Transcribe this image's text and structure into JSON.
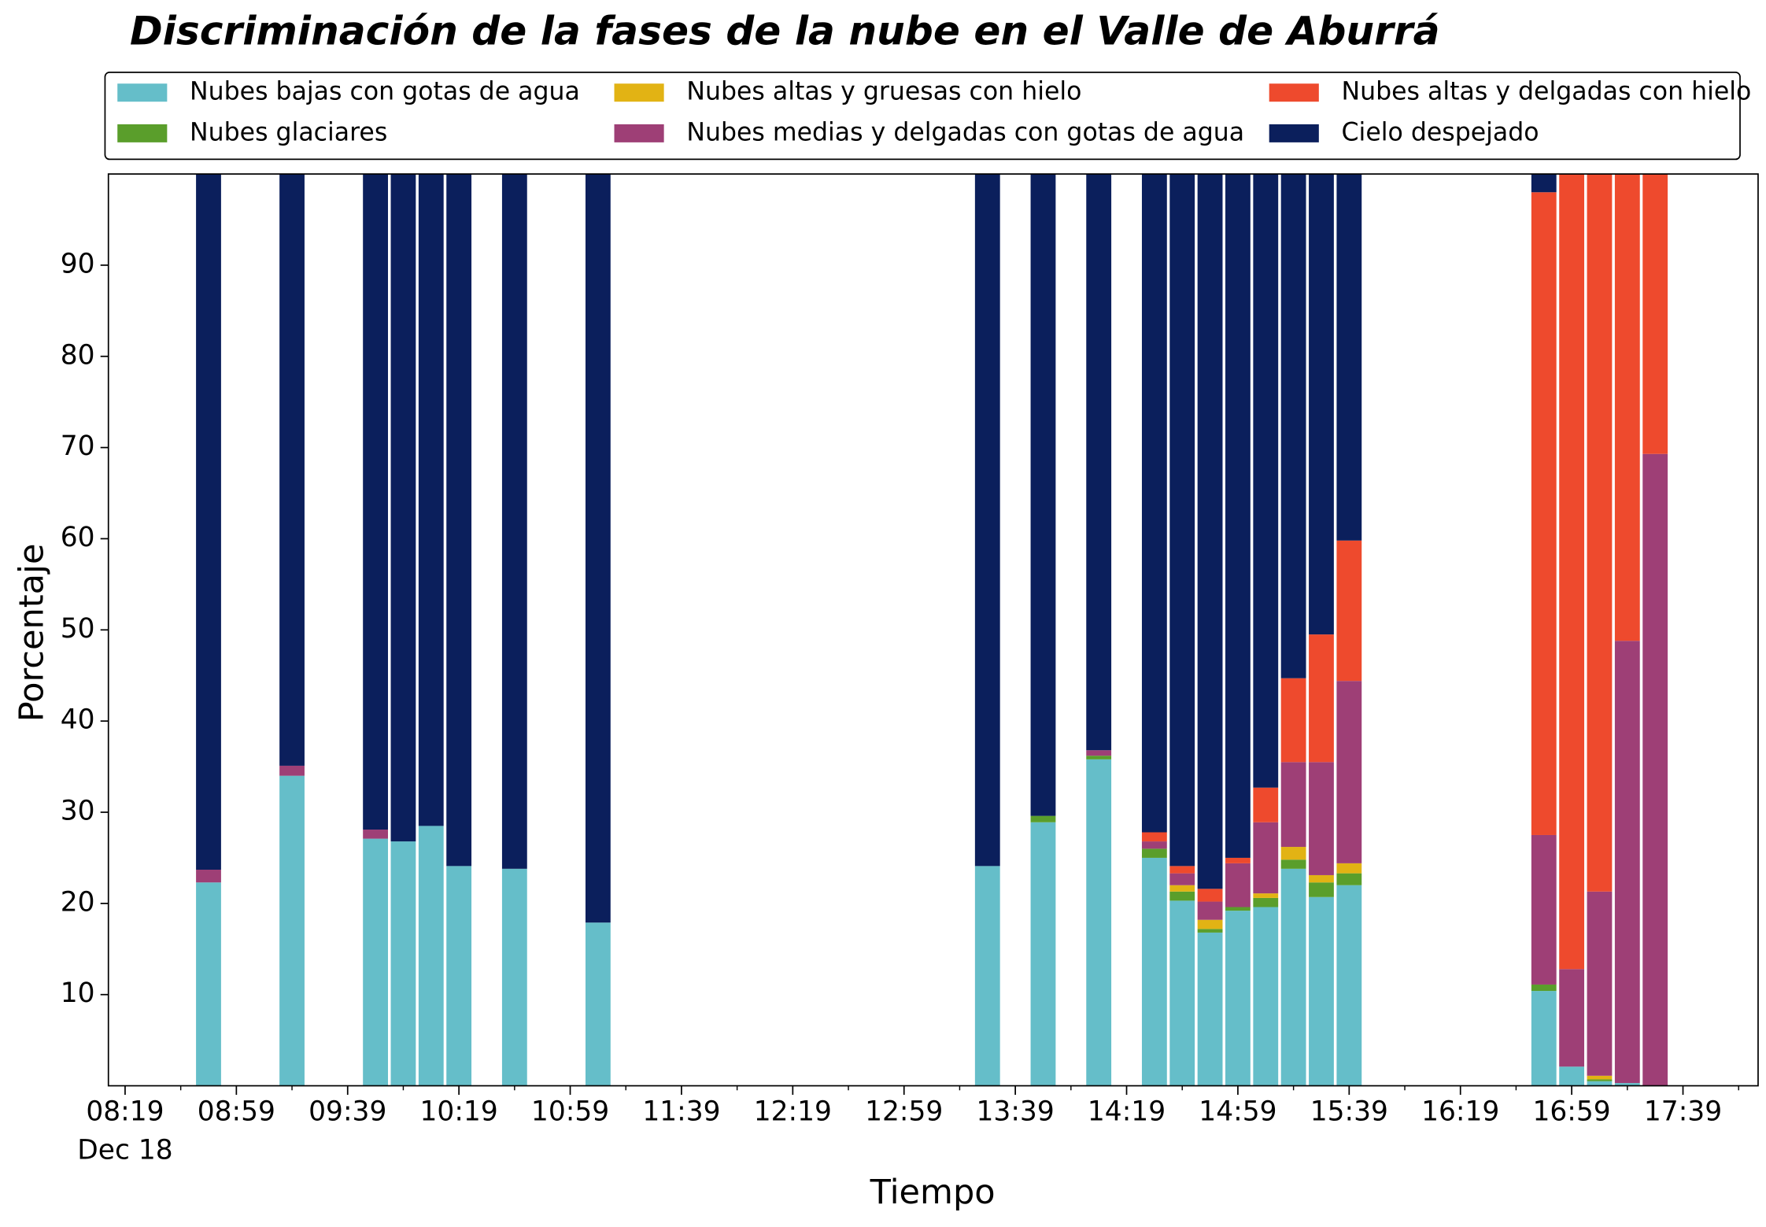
{
  "chart_data": {
    "type": "stacked_bar",
    "title": "Discriminación de la fases de la nube en el Valle de Aburrá",
    "x_label": "Tiempo",
    "y_label": "Porcentaje",
    "x_date_label": "Dec 18",
    "x": [
      "08:49",
      "09:19",
      "09:49",
      "09:59",
      "10:09",
      "10:19",
      "10:39",
      "11:09",
      "13:29",
      "13:49",
      "14:09",
      "14:29",
      "14:39",
      "14:49",
      "14:59",
      "15:09",
      "15:19",
      "15:29",
      "15:39",
      "16:49",
      "16:59",
      "17:09",
      "17:19",
      "17:29"
    ],
    "series": [
      {
        "name": "Nubes bajas con gotas de agua",
        "color": "#65bec9",
        "values": [
          22.3,
          34,
          27.1,
          26.8,
          28.5,
          24.1,
          23.8,
          17.9,
          24.1,
          28.9,
          35.8,
          25.0,
          20.3,
          16.8,
          19.2,
          19.6,
          23.8,
          20.7,
          22.0,
          10.4,
          2.1,
          0.5,
          0.3,
          0
        ]
      },
      {
        "name": "Nubes glaciares",
        "color": "#5a9e2b",
        "values": [
          0,
          0,
          0,
          0,
          0,
          0,
          0,
          0,
          0,
          0.7,
          0.4,
          1.0,
          1.0,
          0.4,
          0.4,
          1.0,
          1.0,
          1.6,
          1.3,
          0.7,
          0,
          0.2,
          0,
          0
        ]
      },
      {
        "name": "Nubes altas y gruesas con hielo",
        "color": "#e2b314",
        "values": [
          0,
          0,
          0,
          0,
          0,
          0,
          0,
          0,
          0,
          0,
          0,
          0,
          0.7,
          1.0,
          0,
          0.5,
          1.4,
          0.8,
          1.1,
          0,
          0,
          0.4,
          0,
          0
        ]
      },
      {
        "name": "Nubes medias y delgadas con gotas de agua",
        "color": "#9e3f76",
        "values": [
          1.4,
          1.1,
          1.0,
          0,
          0,
          0,
          0,
          0,
          0,
          0,
          0.6,
          0.8,
          1.3,
          2.0,
          4.8,
          7.8,
          9.3,
          12.4,
          20.0,
          16.4,
          10.7,
          20.2,
          48.5,
          69.3
        ]
      },
      {
        "name": "Nubes altas y delgadas con hielo",
        "color": "#ee4a2d",
        "values": [
          0,
          0,
          0,
          0,
          0,
          0,
          0,
          0,
          0,
          0,
          0,
          1.0,
          0.8,
          1.4,
          0.6,
          3.8,
          9.2,
          14.0,
          15.4,
          70.5,
          87.2,
          78.7,
          51.2,
          30.7
        ]
      },
      {
        "name": "Cielo despejado",
        "color": "#0b1f5c",
        "values": [
          76.3,
          64.9,
          71.9,
          73.2,
          71.5,
          75.9,
          76.2,
          82.1,
          75.9,
          70.4,
          63.2,
          72.2,
          75.9,
          78.4,
          75.0,
          67.3,
          55.3,
          50.5,
          40.2,
          2.0,
          0,
          0,
          0,
          0
        ]
      }
    ],
    "xlim": [
      "08:13",
      "18:06"
    ],
    "xticks": [
      "08:19",
      "08:59",
      "09:39",
      "10:19",
      "10:59",
      "11:39",
      "12:19",
      "12:59",
      "13:39",
      "14:19",
      "14:59",
      "15:39",
      "16:19",
      "16:59",
      "17:39"
    ],
    "xticks_minor": [
      "08:39",
      "09:19",
      "09:59",
      "10:39",
      "11:19",
      "11:59",
      "12:39",
      "13:19",
      "13:59",
      "14:39",
      "15:19",
      "15:59",
      "16:39",
      "17:19",
      "17:59"
    ],
    "ylim": [
      0,
      100
    ],
    "yticks": [
      10,
      20,
      30,
      40,
      50,
      60,
      70,
      80,
      90
    ],
    "grid": false,
    "legend": "top"
  }
}
